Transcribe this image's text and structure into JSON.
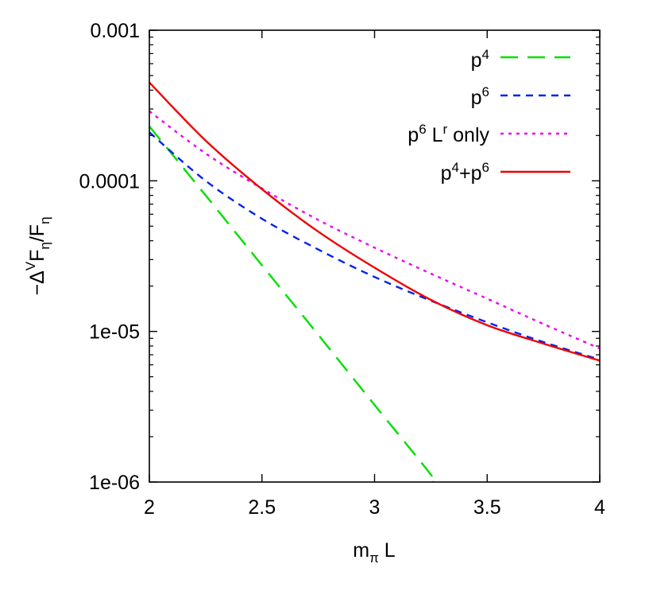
{
  "chart_data": {
    "type": "line",
    "xlabel": {
      "main": "m",
      "sub": "π",
      "tail": " L"
    },
    "ylabel": {
      "prefix": "−Δ",
      "sup": "V",
      "f1": "F",
      "sub1": "η",
      "slash": "/F",
      "sub2": "η"
    },
    "xlim": [
      2,
      4
    ],
    "ylim": [
      1e-06,
      0.001
    ],
    "yscale": "log",
    "xticks": [
      2,
      2.5,
      3,
      3.5,
      4
    ],
    "xtick_labels": [
      "2",
      "2.5",
      "3",
      "3.5",
      "4"
    ],
    "yticks": [
      1e-06,
      1e-05,
      0.0001,
      0.001
    ],
    "ytick_labels": [
      "1e-06",
      "1e-05",
      "0.0001",
      "0.001"
    ],
    "grid": false,
    "legend_position": "top-right",
    "series": [
      {
        "key": "p4",
        "legend": {
          "t1": "p",
          "s1": "4",
          "t2": "",
          "s2": "",
          "t3": ""
        },
        "color": "#00dd00",
        "dash": "22,12",
        "x": [
          2.0,
          2.25,
          2.5,
          2.75,
          3.0,
          3.25,
          3.26
        ],
        "y": [
          0.00023,
          8e-05,
          2.75e-05,
          9.5e-06,
          3.25e-06,
          1.12e-06,
          1e-06
        ]
      },
      {
        "key": "p6",
        "legend": {
          "t1": "p",
          "s1": "6",
          "t2": "",
          "s2": "",
          "t3": ""
        },
        "color": "#0022ee",
        "dash": "9,7",
        "x": [
          2.0,
          2.25,
          2.5,
          2.75,
          3.0,
          3.25,
          3.5,
          3.75,
          4.0
        ],
        "y": [
          0.00021,
          0.0001,
          5.6e-05,
          3.5e-05,
          2.3e-05,
          1.6e-05,
          1.15e-05,
          8.5e-06,
          6.5e-06
        ]
      },
      {
        "key": "p6_Lr",
        "legend": {
          "t1": "p",
          "s1": "6",
          "t2": " L",
          "s2": "r",
          "t3": " only"
        },
        "color": "#ee00ee",
        "dash": "4,6",
        "x": [
          2.0,
          2.25,
          2.5,
          2.75,
          3.0,
          3.25,
          3.5,
          3.75,
          4.0
        ],
        "y": [
          0.00029,
          0.000152,
          8.9e-05,
          5.5e-05,
          3.6e-05,
          2.42e-05,
          1.65e-05,
          1.12e-05,
          7.7e-06
        ]
      },
      {
        "key": "p4p6",
        "legend": {
          "t1": "p",
          "s1": "4",
          "t2": "+p",
          "s2": "6",
          "t3": ""
        },
        "color": "#ee0000",
        "dash": "",
        "x": [
          2.0,
          2.25,
          2.5,
          2.75,
          3.0,
          3.25,
          3.5,
          3.75,
          4.0
        ],
        "y": [
          0.00045,
          0.000185,
          8.8e-05,
          4.6e-05,
          2.65e-05,
          1.62e-05,
          1.1e-05,
          8.3e-06,
          6.4e-06
        ]
      }
    ]
  }
}
